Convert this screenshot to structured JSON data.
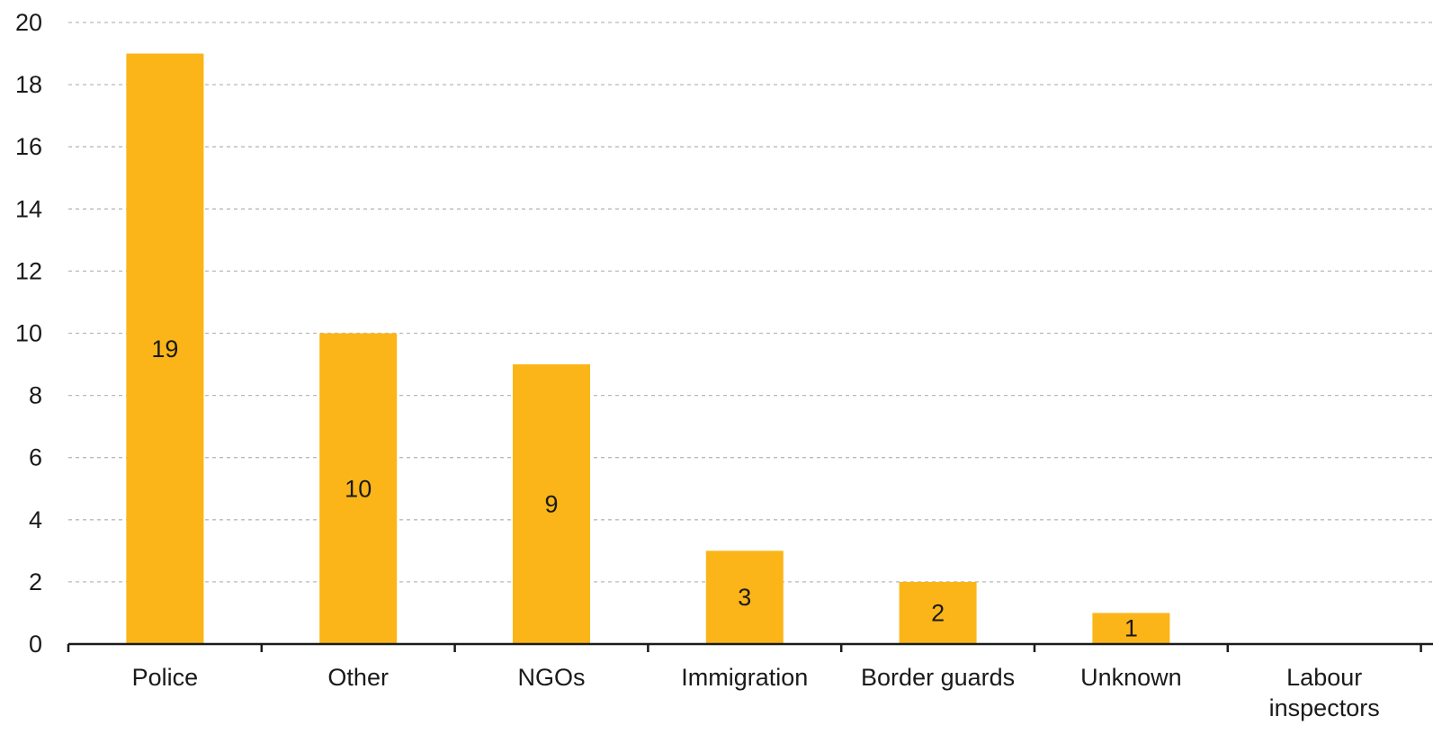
{
  "chart_data": {
    "type": "bar",
    "categories": [
      "Police",
      "Other",
      "NGOs",
      "Immigration",
      "Border guards",
      "Unknown",
      "Labour\ninspectors"
    ],
    "values": [
      19,
      10,
      9,
      3,
      2,
      1,
      0
    ],
    "data_labels": [
      "19",
      "10",
      "9",
      "3",
      "2",
      "1",
      ""
    ],
    "title": "",
    "xlabel": "",
    "ylabel": "",
    "ylim": [
      0,
      20
    ],
    "yticks": [
      0,
      2,
      4,
      6,
      8,
      10,
      12,
      14,
      16,
      18,
      20
    ],
    "grid": true,
    "bar_color": "#FBB518",
    "legend": "none"
  }
}
